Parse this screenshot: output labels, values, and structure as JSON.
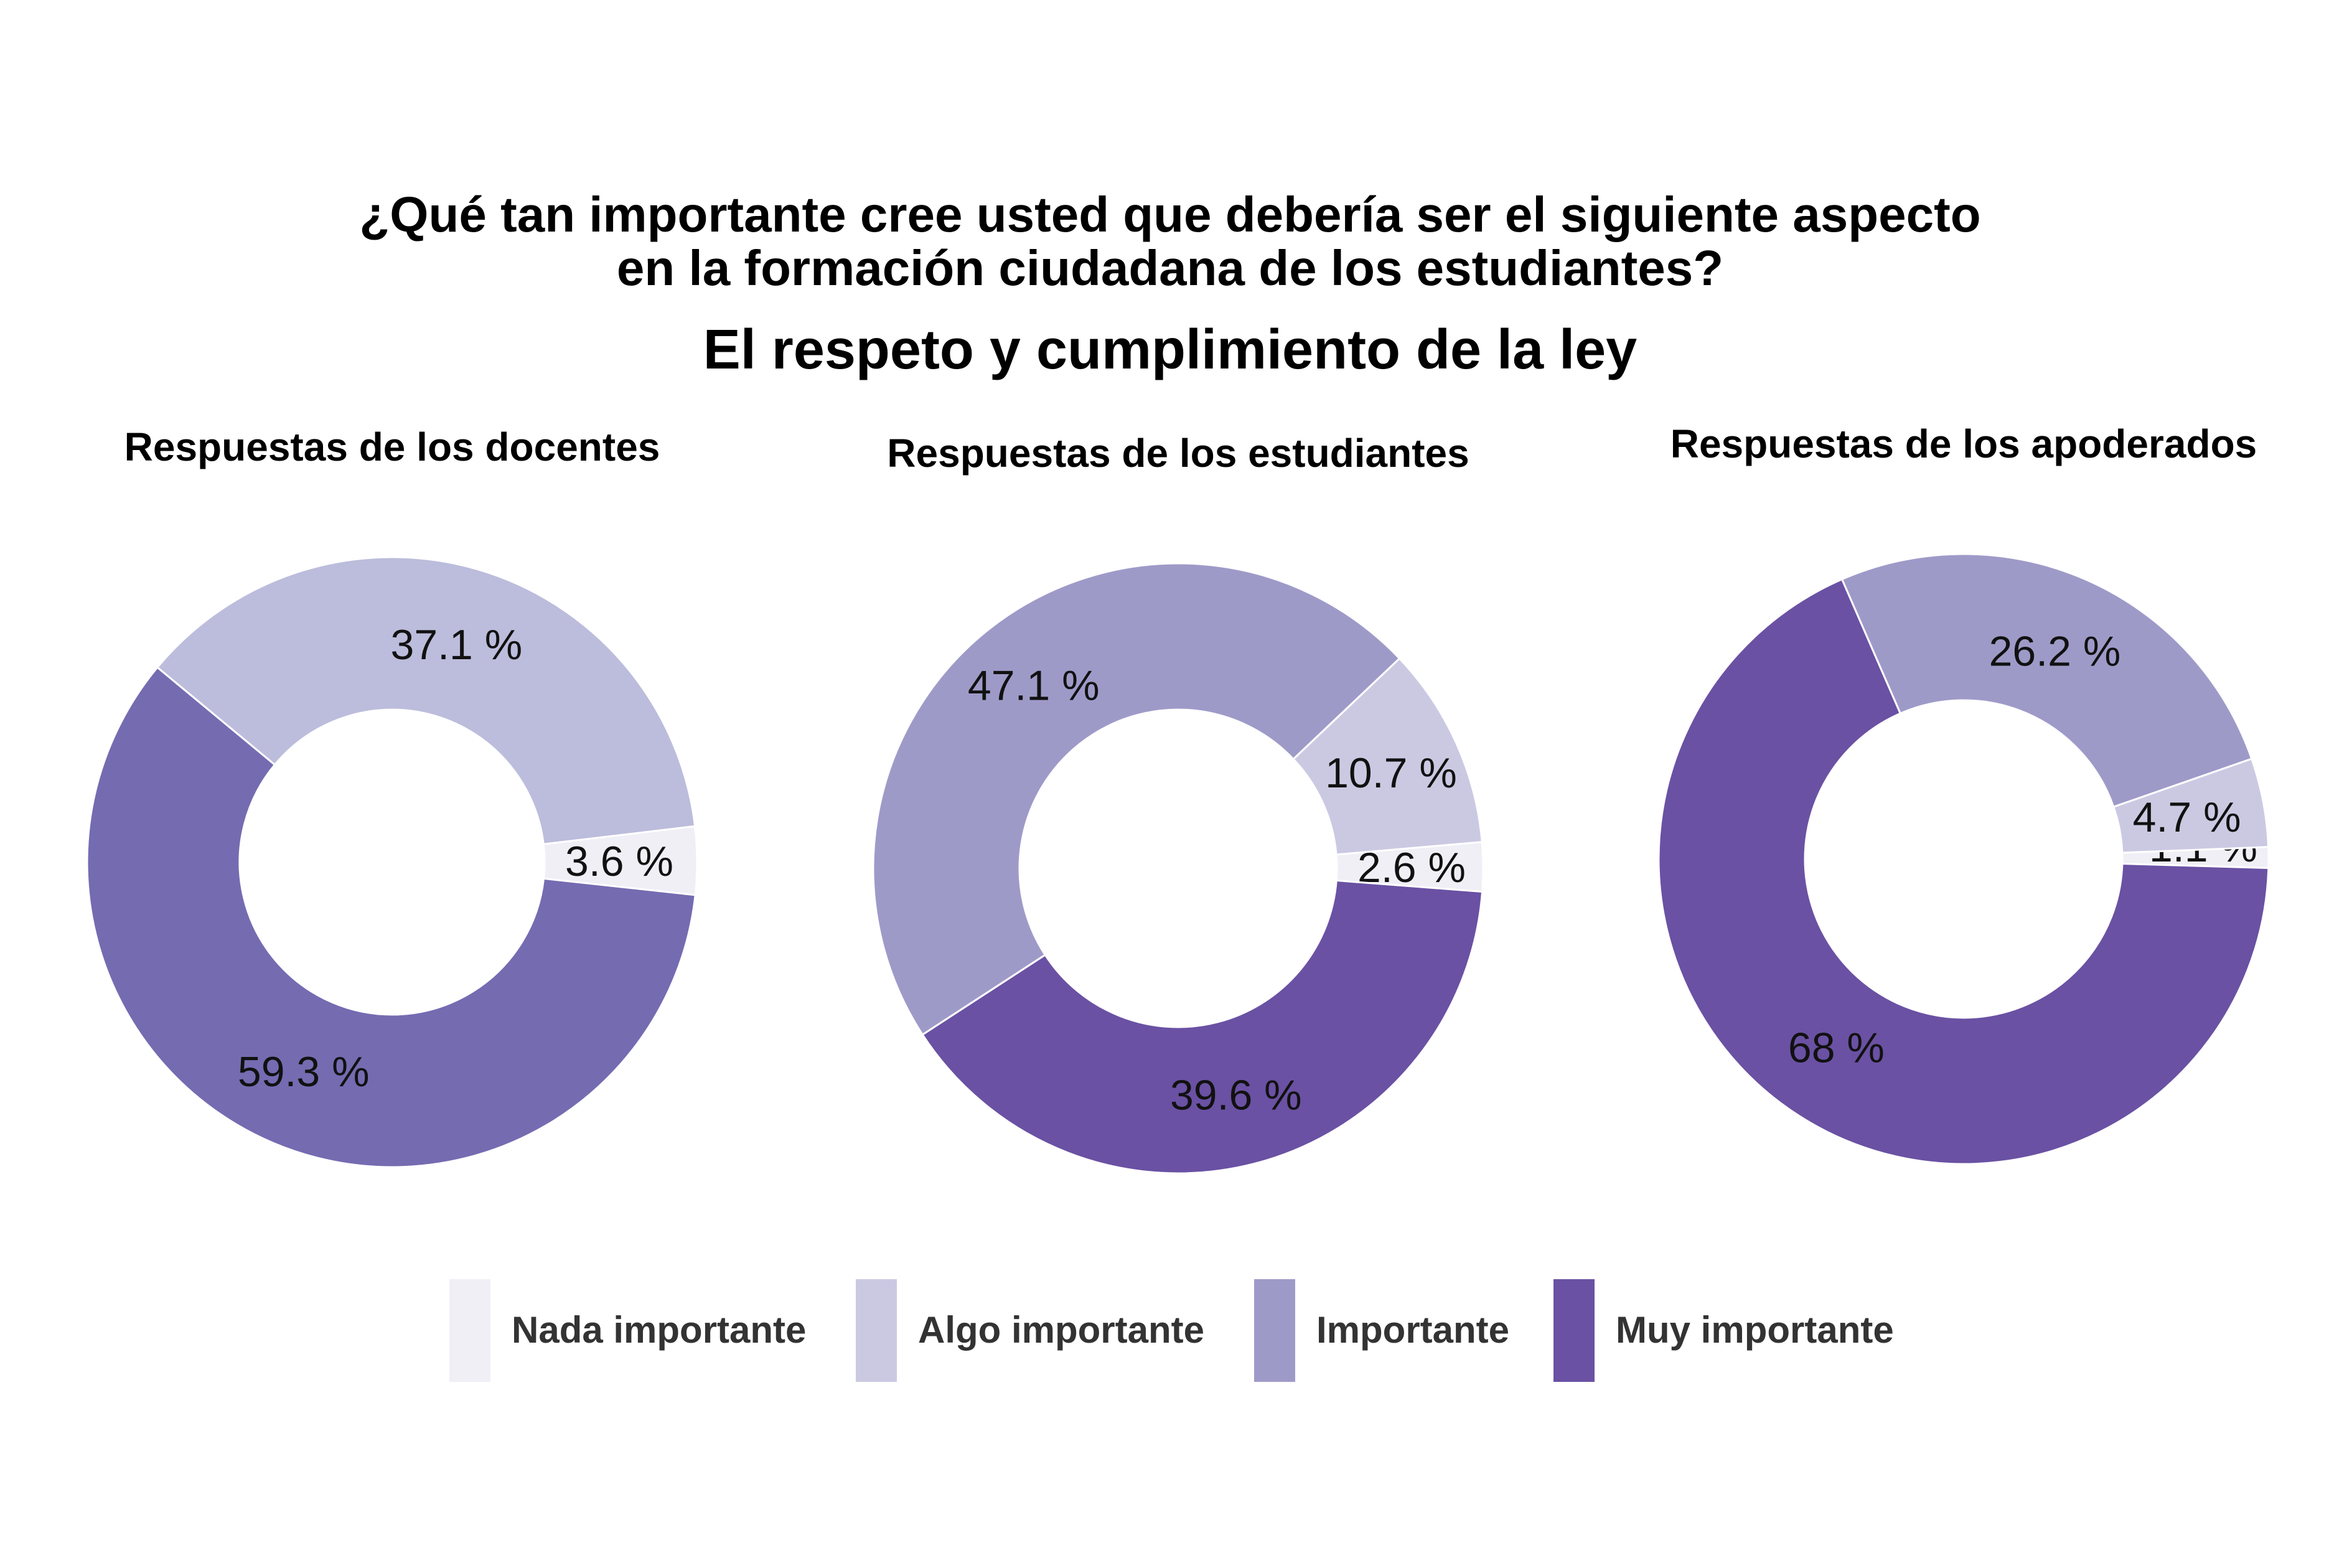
{
  "title_line1": "¿Qué tan importante cree usted que debería ser el siguiente aspecto",
  "title_line2": "en la formación ciudadana de los estudiantes?",
  "subtitle": "El respeto y cumplimiento de la ley",
  "colors": {
    "Nada importante": "#f0eff6",
    "Algo importante": "#cbc9e2",
    "Importante": "#9e9ac8",
    "Muy importante": "#6a51a3"
  },
  "chart_data": [
    {
      "type": "pie",
      "title": "Respuestas de los docentes",
      "categories": [
        "Nada importante",
        "Algo importante",
        "Importante",
        "Muy importante"
      ],
      "values": [
        3.6,
        37.1,
        0,
        59.3
      ],
      "labels": [
        "3.6 %",
        "37.1 %",
        "",
        "59.3 %"
      ],
      "slice_colors": [
        "#f0eff6",
        "#bcbcdc",
        "#9e9ac8",
        "#756bb1"
      ]
    },
    {
      "type": "pie",
      "title": "Respuestas de los estudiantes",
      "categories": [
        "Nada importante",
        "Algo importante",
        "Importante",
        "Muy importante"
      ],
      "values": [
        2.6,
        10.7,
        47.1,
        39.6
      ],
      "labels": [
        "2.6 %",
        "10.7 %",
        "47.1 %",
        "39.6 %"
      ],
      "slice_colors": [
        "#f0eff6",
        "#cbc9e2",
        "#9e9ac8",
        "#6a51a3"
      ]
    },
    {
      "type": "pie",
      "title": "Respuestas de los apoderados",
      "categories": [
        "Nada importante",
        "Algo importante",
        "Importante",
        "Muy importante"
      ],
      "values": [
        1.1,
        4.7,
        26.2,
        68
      ],
      "labels": [
        "1.1 %",
        "4.7 %",
        "26.2 %",
        "68 %"
      ],
      "slice_colors": [
        "#f0eff6",
        "#cbc9e2",
        "#9e9ac8",
        "#6a51a3"
      ]
    }
  ],
  "legend": {
    "position": "bottom",
    "items": [
      "Nada importante",
      "Algo importante",
      "Importante",
      "Muy importante"
    ]
  }
}
